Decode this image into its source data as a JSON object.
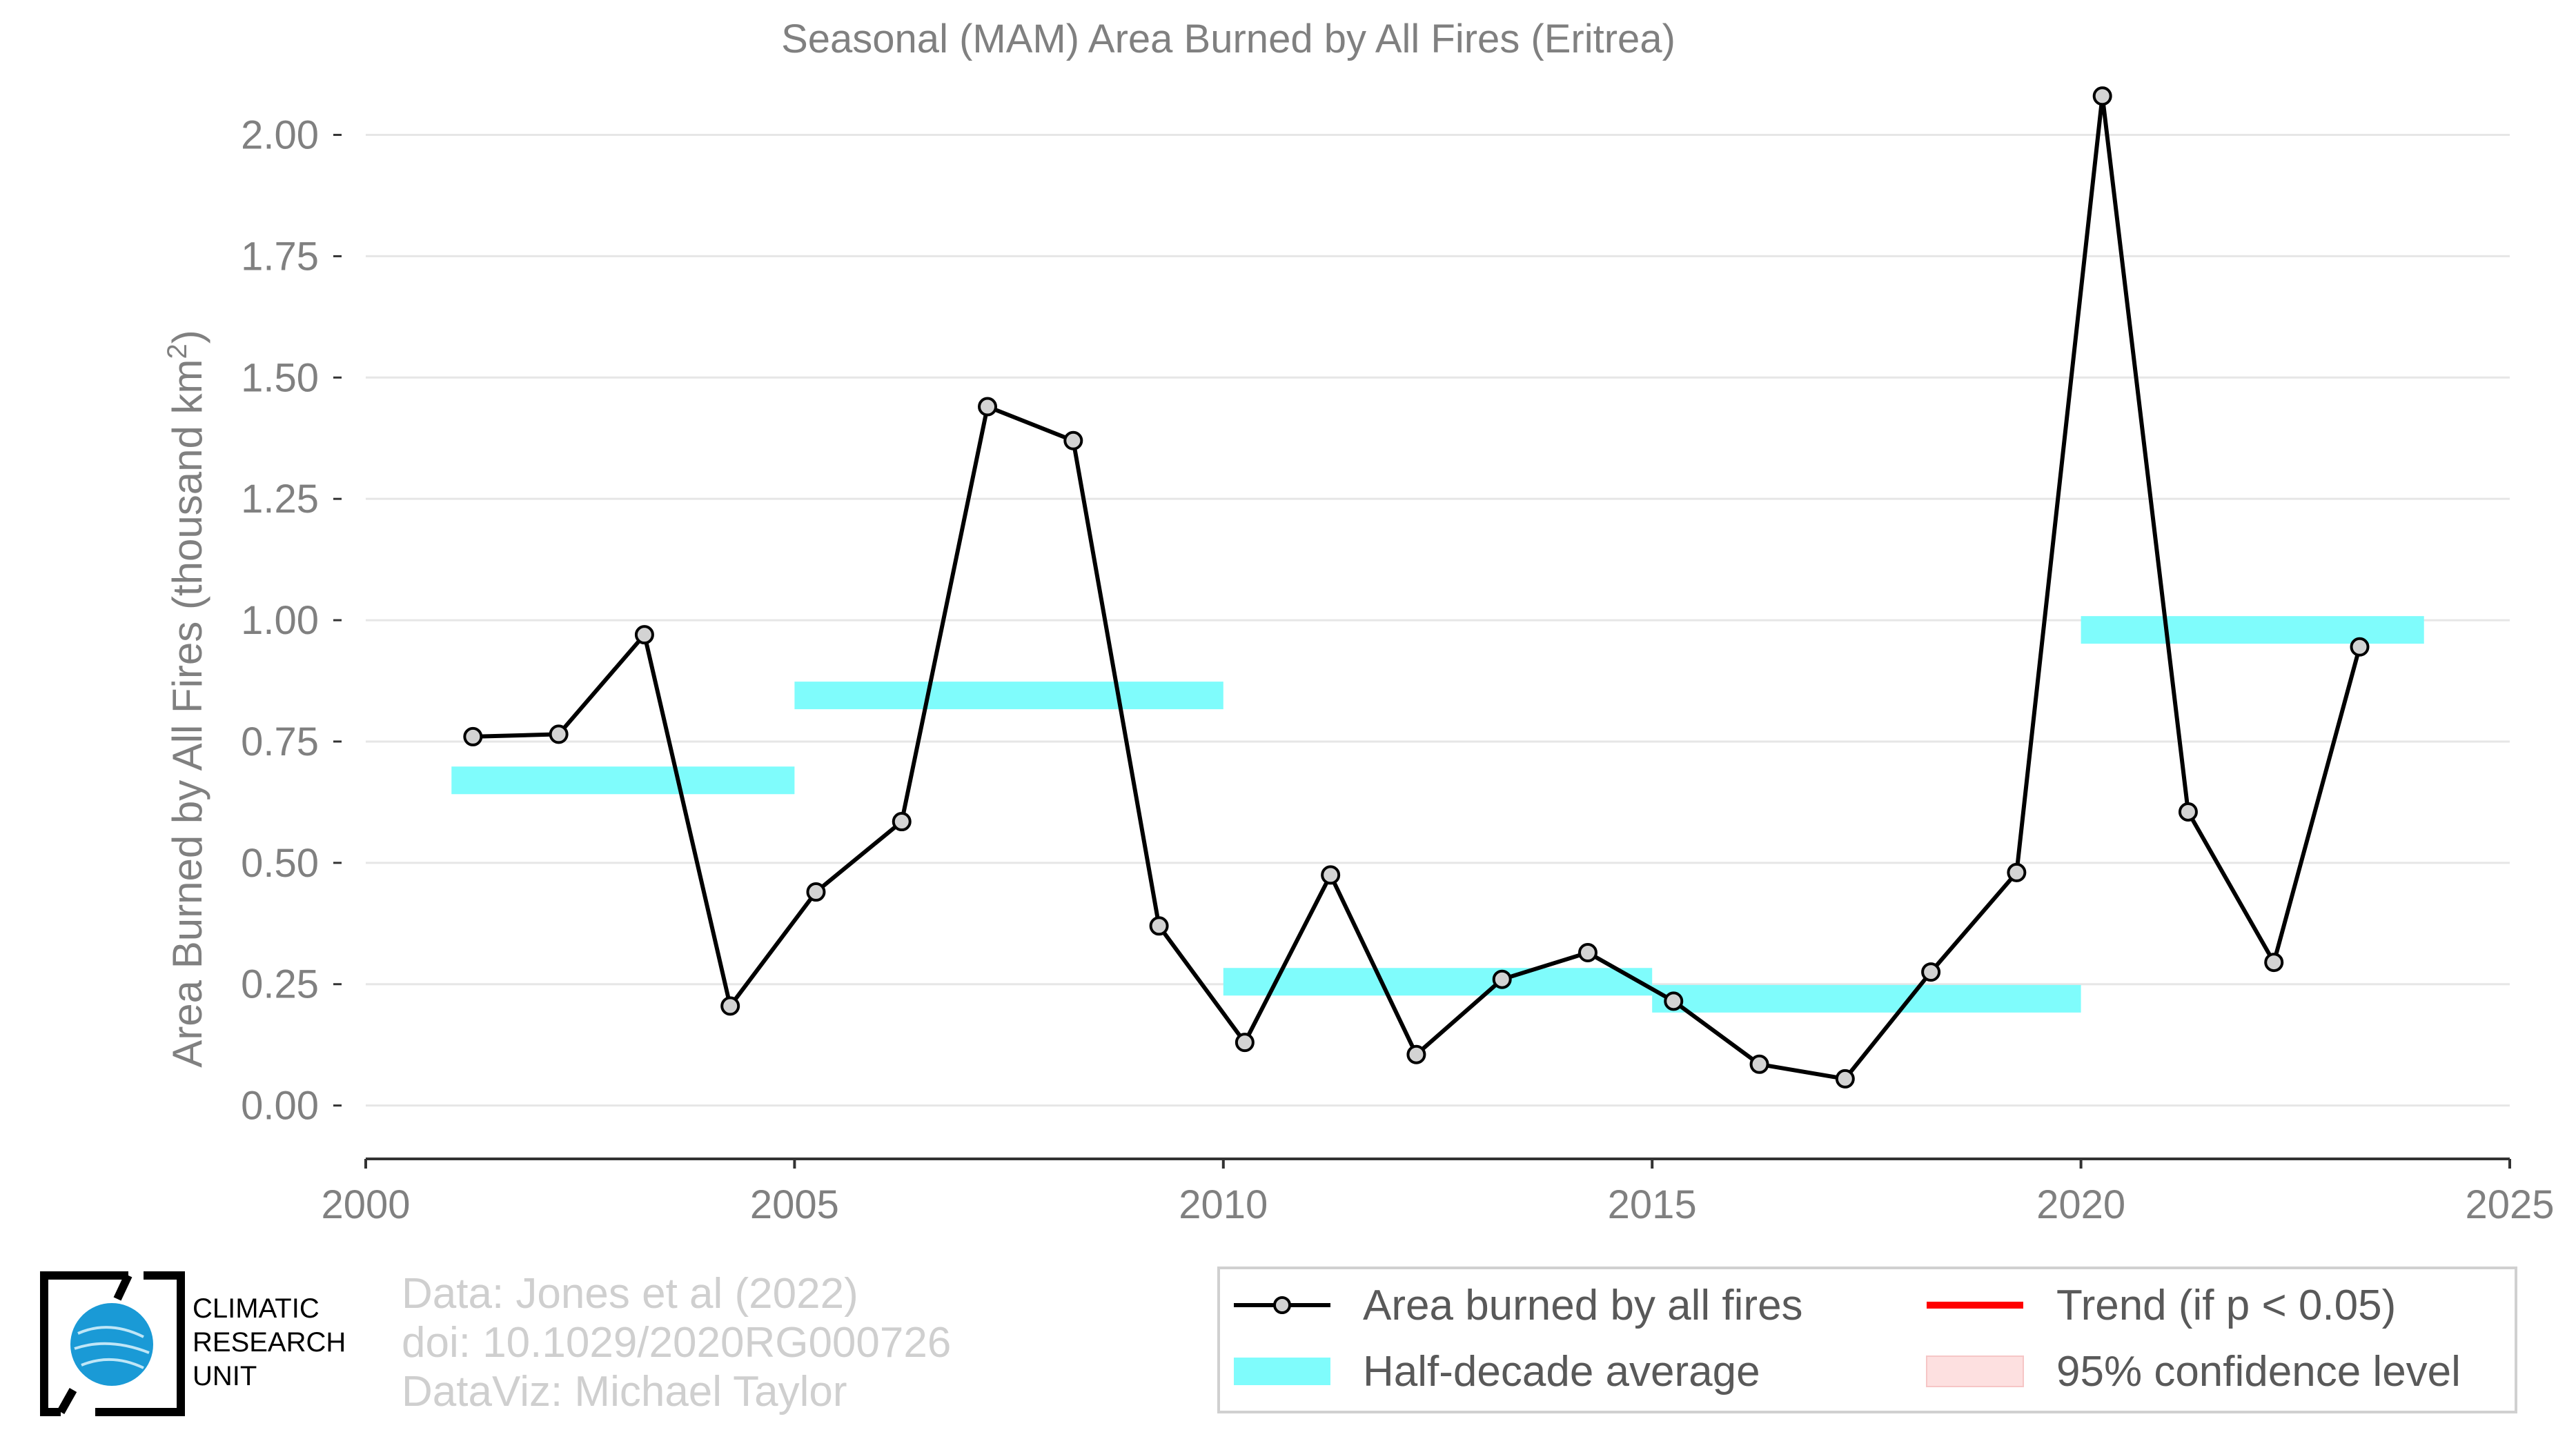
{
  "chart_data": {
    "type": "line",
    "title": "Seasonal (MAM) Area Burned by All Fires (Eritrea)",
    "xlabel": "",
    "ylabel": "Area Burned by All Fires (thousand km",
    "ylabel_sup": "2",
    "ylabel_suffix": ")",
    "xlim": [
      2000,
      2025
    ],
    "ylim": [
      -0.11,
      2.15
    ],
    "x_ticks": [
      2000,
      2005,
      2010,
      2015,
      2020,
      2025
    ],
    "x_tick_labels": [
      "2000",
      "2005",
      "2010",
      "2015",
      "2020",
      "2025"
    ],
    "y_ticks": [
      0,
      0.25,
      0.5,
      0.75,
      1.0,
      1.25,
      1.5,
      1.75,
      2.0
    ],
    "y_tick_labels": [
      "0.00",
      "0.25",
      "0.50",
      "0.75",
      "1.00",
      "1.25",
      "1.50",
      "1.75",
      "2.00"
    ],
    "grid": "horizontal",
    "legend_position": "bottom-right",
    "series": [
      {
        "name": "Area burned by all fires",
        "color": "#000000",
        "x": [
          2001.25,
          2002.25,
          2003.25,
          2004.25,
          2005.25,
          2006.25,
          2007.25,
          2008.25,
          2009.25,
          2010.25,
          2011.25,
          2012.25,
          2013.25,
          2014.25,
          2015.25,
          2016.25,
          2017.25,
          2018.25,
          2019.25,
          2020.25,
          2021.25,
          2022.25,
          2023.25
        ],
        "y": [
          0.76,
          0.765,
          0.97,
          0.205,
          0.44,
          0.585,
          1.44,
          1.37,
          0.37,
          0.13,
          0.475,
          0.105,
          0.26,
          0.315,
          0.215,
          0.085,
          0.055,
          0.275,
          0.48,
          2.08,
          0.605,
          0.295,
          0.945
        ]
      }
    ],
    "half_decade_average": {
      "name": "Half-decade average",
      "color": "#7ffcfc",
      "segments": [
        {
          "x": [
            2001,
            2005
          ],
          "y": 0.67
        },
        {
          "x": [
            2005,
            2010
          ],
          "y": 0.845
        },
        {
          "x": [
            2010,
            2015
          ],
          "y": 0.255
        },
        {
          "x": [
            2015,
            2020
          ],
          "y": 0.22
        },
        {
          "x": [
            2020,
            2024
          ],
          "y": 0.98
        }
      ]
    },
    "legend": [
      {
        "label": "Area burned by all fires",
        "symbol": "line-marker",
        "color": "#000000"
      },
      {
        "label": "Trend (if p < 0.05)",
        "symbol": "line",
        "color": "#ff0000"
      },
      {
        "label": "Half-decade average",
        "symbol": "band",
        "color": "#7ffcfc"
      },
      {
        "label": "95% confidence level",
        "symbol": "band",
        "color": "#fde0e0"
      }
    ]
  },
  "credits": {
    "line1": "Data: Jones et al (2022)",
    "line2": "doi: 10.1029/2020RG000726",
    "line3": "DataViz: Michael Taylor"
  },
  "logo": {
    "line1": "CLIMATIC",
    "line2": "RESEARCH",
    "line3": "UNIT",
    "globe_color": "#1a9ad6"
  }
}
